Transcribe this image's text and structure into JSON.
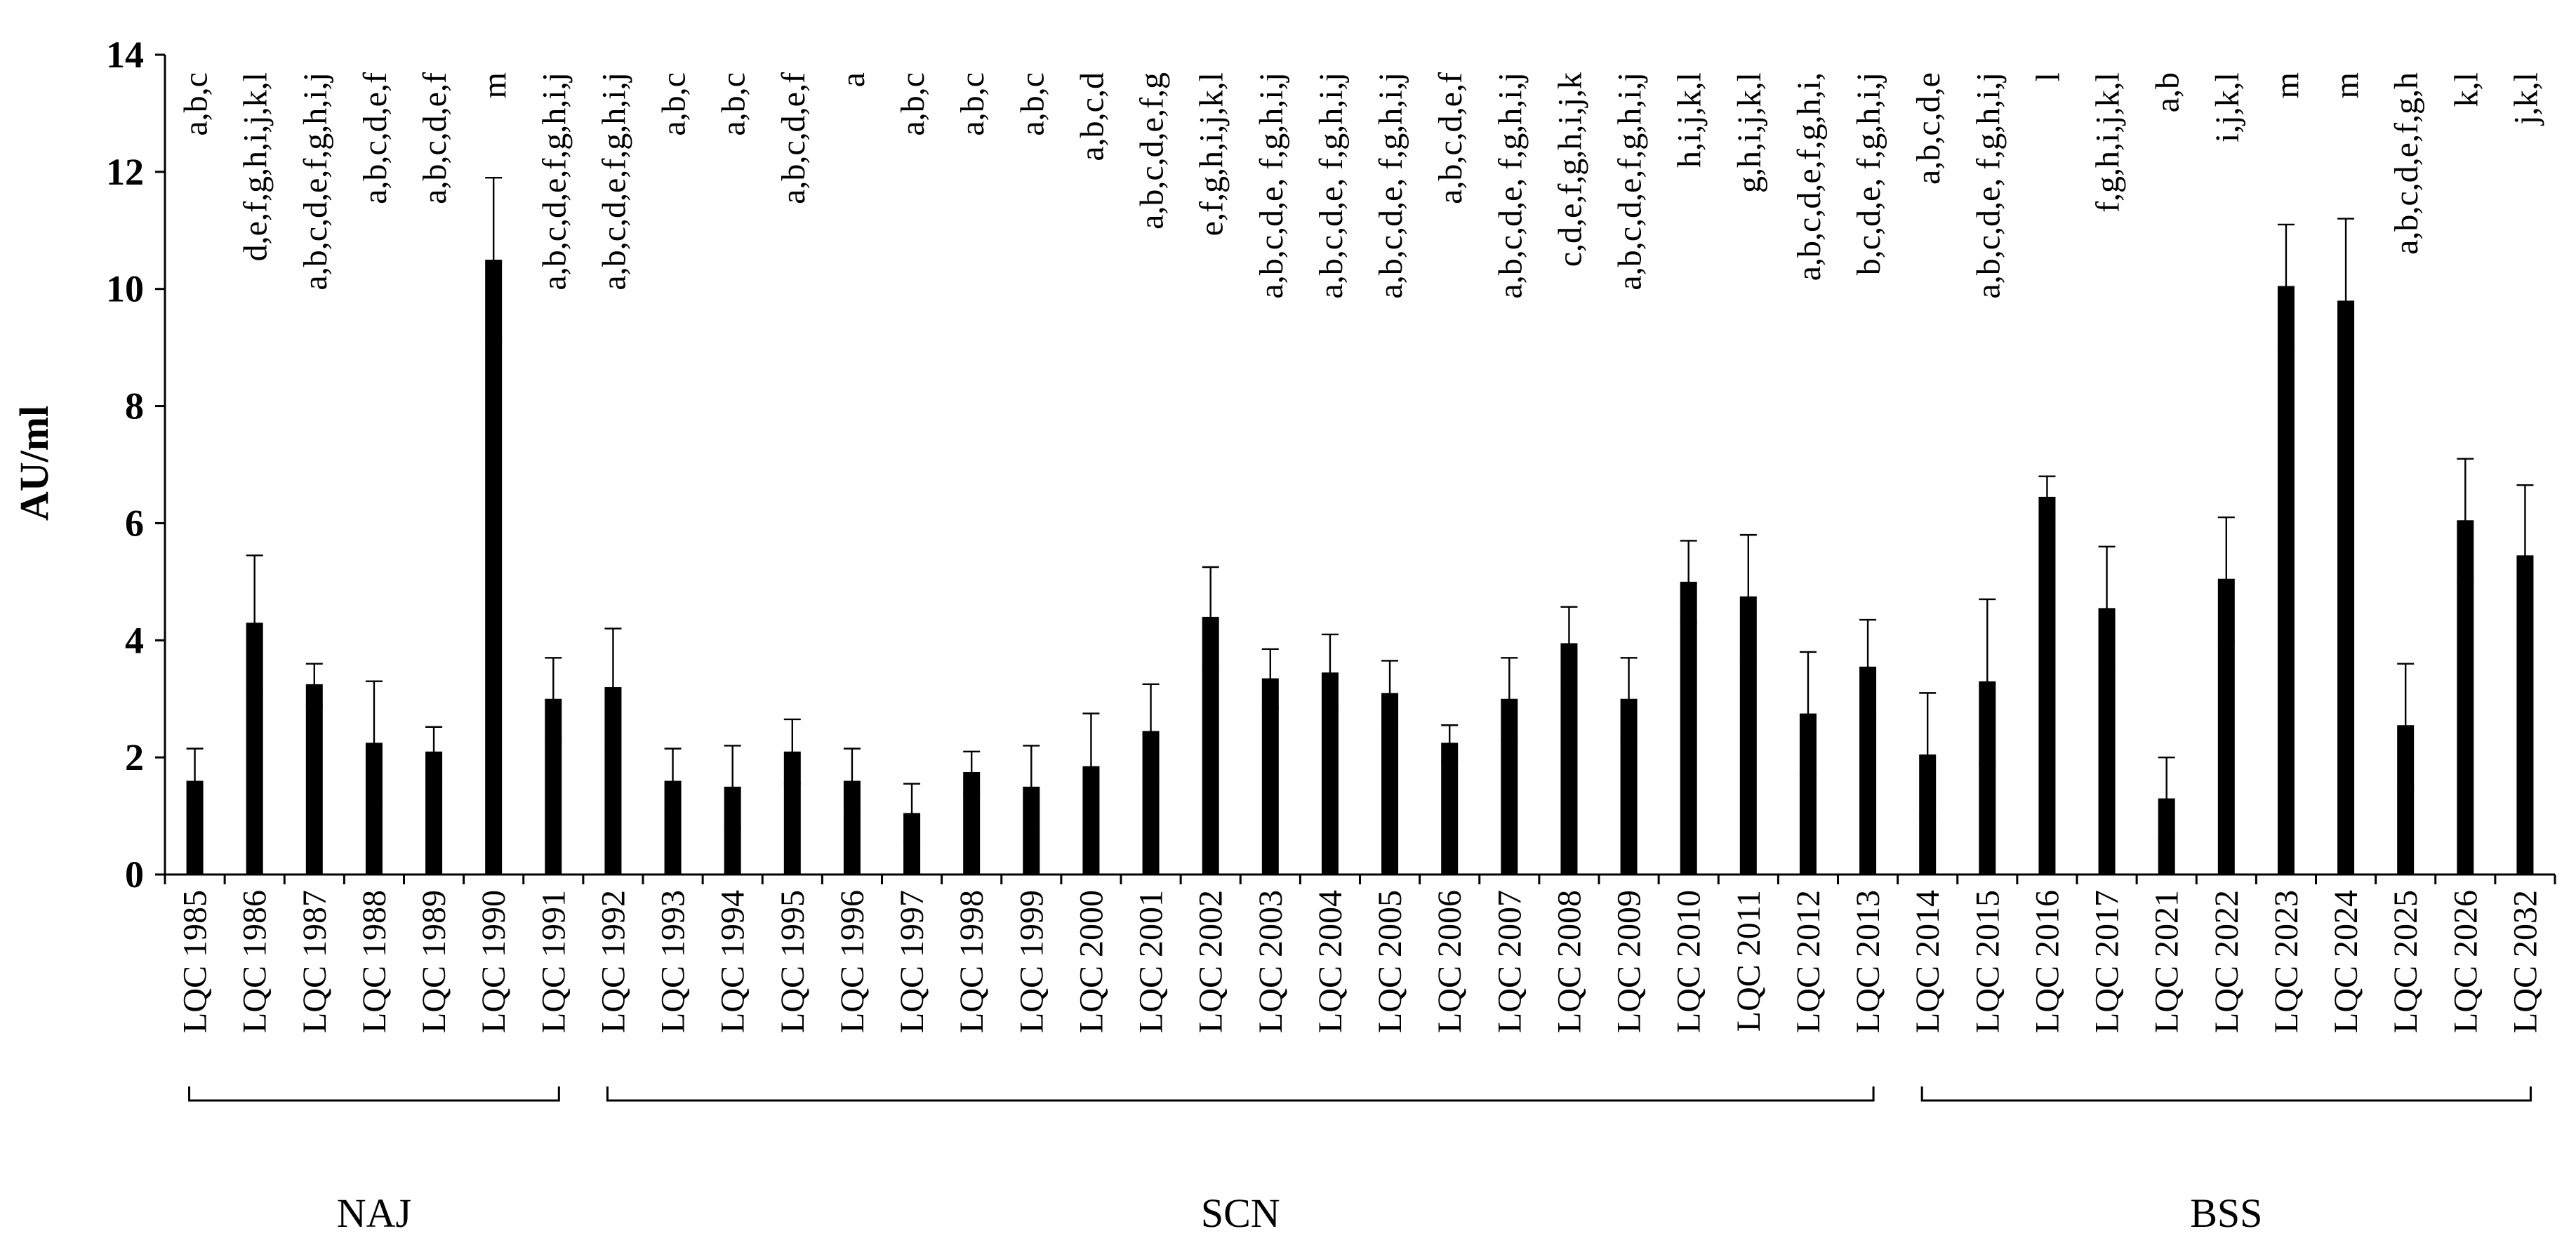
{
  "chart_data": {
    "type": "bar",
    "ylabel": "AU/ml",
    "ylim": [
      0,
      14
    ],
    "yticks": [
      0,
      2,
      4,
      6,
      8,
      10,
      12,
      14
    ],
    "categories": [
      "LQC 1985",
      "LQC 1986",
      "LQC 1987",
      "LQC 1988",
      "LQC 1989",
      "LQC 1990",
      "LQC 1991",
      "LQC 1992",
      "LQC 1993",
      "LQC 1994",
      "LQC 1995",
      "LQC 1996",
      "LQC 1997",
      "LQC 1998",
      "LQC 1999",
      "LQC 2000",
      "LQC 2001",
      "LQC 2002",
      "LQC 2003",
      "LQC 2004",
      "LQC 2005",
      "LQC 2006",
      "LQC 2007",
      "LQC 2008",
      "LQC 2009",
      "LQC 2010",
      "LQC 2011",
      "LQC 2012",
      "LQC 2013",
      "LQC 2014",
      "LQC 2015",
      "LQC 2016",
      "LQC 2017",
      "LQC 2021",
      "LQC 2022",
      "LQC 2023",
      "LQC 2024",
      "LQC 2025",
      "LQC 2026",
      "LQC 2032"
    ],
    "values": [
      1.6,
      4.3,
      3.25,
      2.25,
      2.1,
      10.5,
      3.0,
      3.2,
      1.6,
      1.5,
      2.1,
      1.6,
      1.05,
      1.75,
      1.5,
      1.85,
      2.45,
      4.4,
      3.35,
      3.45,
      3.1,
      2.25,
      3.0,
      3.95,
      3.0,
      5.0,
      4.75,
      2.75,
      3.55,
      2.05,
      3.3,
      6.45,
      4.55,
      1.3,
      5.05,
      10.05,
      9.8,
      2.55,
      6.05,
      5.45
    ],
    "errors": [
      0.55,
      1.15,
      0.35,
      1.05,
      0.42,
      1.4,
      0.7,
      1.0,
      0.55,
      0.7,
      0.55,
      0.55,
      0.5,
      0.35,
      0.7,
      0.9,
      0.8,
      0.85,
      0.5,
      0.65,
      0.55,
      0.3,
      0.7,
      0.62,
      0.7,
      0.7,
      1.05,
      1.05,
      0.8,
      1.05,
      1.4,
      0.35,
      1.05,
      0.7,
      1.05,
      1.05,
      1.4,
      1.05,
      1.05,
      1.2
    ],
    "annotations": [
      "a,b,c",
      "d,e,f,g,h,i,j,k,l",
      "a,b,c,d,e,f,g,h,i,j",
      "a,b,c,d,e,f",
      "a,b,c,d,e,f",
      "m",
      "a,b,c,d,e,f,g,h,i,j",
      "a,b,c,d,e,f,g,h,i,j",
      "a,b,c",
      "a,b,c",
      "a,b,c,d,e,f",
      "a",
      "a,b,c",
      "a,b,c",
      "a,b,c",
      "a,b,c,d",
      "a,b,c,d,e,f,g",
      "e,f,g,h,i,j,k,l",
      "a,b,c,d,e, f,g,h,i,j",
      "a,b,c,d,e, f,g,h,i,j",
      "a,b,c,d,e, f,g,h,i,j",
      "a,b,c,d,e,f",
      "a,b,c,d,e, f,g,h,i,j",
      "c,d,e,f,g,h,i,j,k",
      "a,b,c,d,e,f,g,h,i,j",
      "h,i,j,k,l",
      "g,h,i,j,k,l",
      "a,b,c,d,e,f,g,h,i,",
      "b,c,d,e, f,g,h,i,j",
      "a,b,c,d,e",
      "a,b,c,d,e, f,g,h,i,j",
      "l",
      "f,g,h,i,j,k,l",
      "a,b",
      "i,j,k,l",
      "m",
      "m",
      "a,b,c,d,e,f,g,h",
      "k,l",
      "j,k,l"
    ],
    "groups": [
      {
        "label": "NAJ",
        "start": 0,
        "end": 6
      },
      {
        "label": "SCN",
        "start": 7,
        "end": 28
      },
      {
        "label": "BSS",
        "start": 29,
        "end": 39
      }
    ],
    "grid": false,
    "legend": "none"
  }
}
